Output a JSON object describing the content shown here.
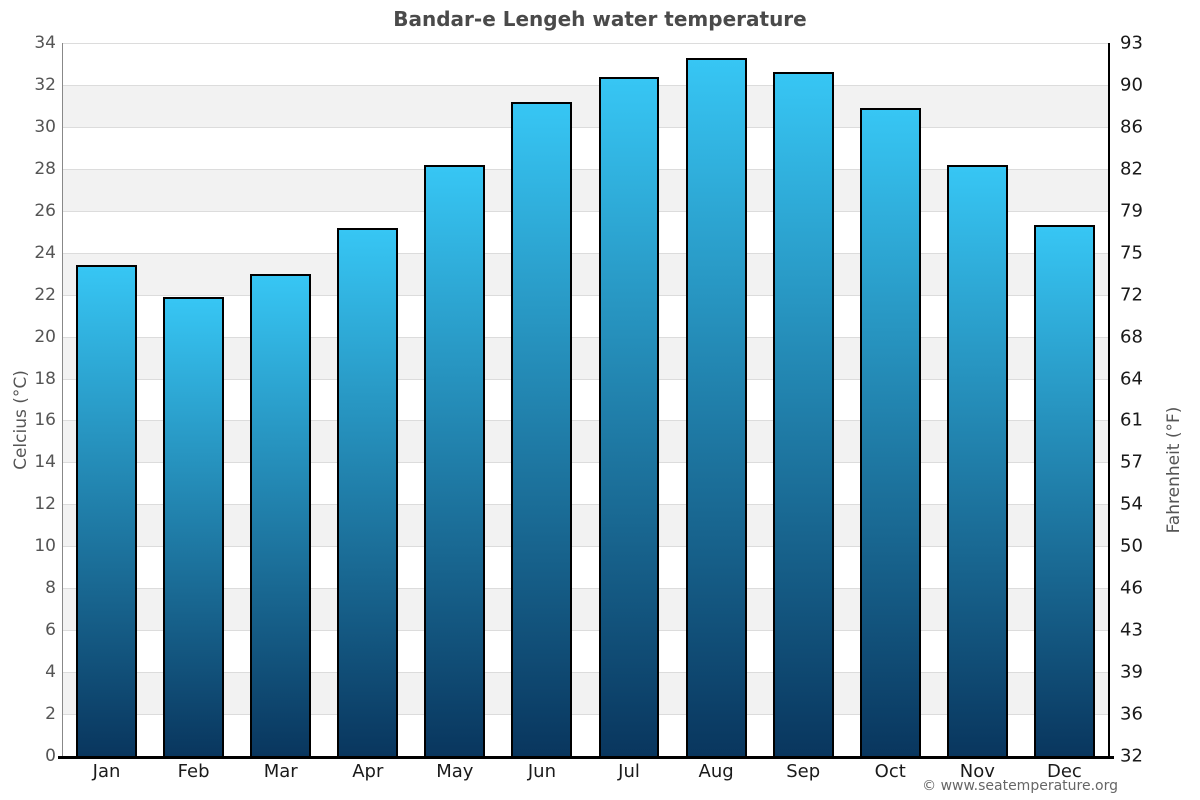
{
  "title": "Bandar-e Lengeh water temperature",
  "footer": {
    "credit": "© www.seatemperature.org"
  },
  "colors": {
    "title_text": "#4a4a4a",
    "bar_top": "#37c6f4",
    "bar_bottom": "#09365e",
    "bar_border": "#000000",
    "stripe_white": "#ffffff",
    "stripe_gray": "#f2f2f2",
    "grid_line": "#dcdcdc",
    "left_axis_line": "#888888",
    "right_axis_line": "#000000",
    "baseline": "#000000",
    "celsius_tick_text": "#555555",
    "fahrenheit_tick_text": "#1a1a1a",
    "month_text": "#1a1a1a",
    "axis_title_text": "#555555",
    "footer_text": "#666666"
  },
  "chart_data": {
    "type": "bar",
    "title": "Bandar-e Lengeh water temperature",
    "categories": [
      "Jan",
      "Feb",
      "Mar",
      "Apr",
      "May",
      "Jun",
      "Jul",
      "Aug",
      "Sep",
      "Oct",
      "Nov",
      "Dec"
    ],
    "values": [
      23.4,
      21.9,
      23.0,
      25.2,
      28.2,
      31.2,
      32.4,
      33.3,
      32.6,
      30.9,
      28.2,
      25.3
    ],
    "unit": "°C",
    "ylabel_left": "Celcius (°C)",
    "ylabel_right": "Fahrenheit (°F)",
    "ylim_celsius": [
      0,
      34
    ],
    "celsius_ticks": [
      0,
      2,
      4,
      6,
      8,
      10,
      12,
      14,
      16,
      18,
      20,
      22,
      24,
      26,
      28,
      30,
      32,
      34
    ],
    "fahrenheit_ticks": [
      32,
      36,
      39,
      43,
      46,
      50,
      54,
      57,
      61,
      64,
      68,
      72,
      75,
      79,
      82,
      86,
      90,
      93
    ],
    "grid": "alternating horizontal stripes every 2°C, gray bands 2-4,6-8,...,30-32",
    "legend": "none",
    "bar_style": "vertical gradient light cyan top to dark navy bottom, black outline"
  }
}
